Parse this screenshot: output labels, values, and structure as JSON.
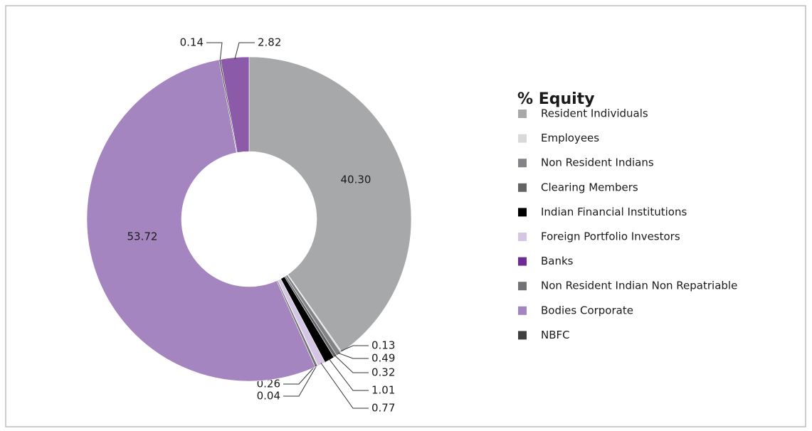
{
  "chart_data": {
    "type": "donut",
    "legend_title": "% Equity",
    "categories": [
      "Resident Individuals",
      "Employees",
      "Non Resident Indians",
      "Clearing Members",
      "Indian Financial Institutions",
      "Foreign Portfolio Investors",
      "Banks",
      "Non Resident Indian Non  Repatriable",
      "Bodies Corporate",
      "NBFC",
      null
    ],
    "values": [
      40.3,
      0.13,
      0.49,
      0.32,
      1.01,
      0.77,
      0.04,
      0.26,
      53.72,
      0.14,
      2.82
    ],
    "value_labels": [
      "40.30",
      "0.13",
      "0.49",
      "0.32",
      "1.01",
      "0.77",
      "0.04",
      "0.26",
      "53.72",
      "0.14",
      "2.82"
    ],
    "colors": [
      "#a7a8aa",
      "#d9d9db",
      "#838487",
      "#636466",
      "#000000",
      "#d6c6e6",
      "#6c2c92",
      "#727376",
      "#a585bf",
      "#3f3f41",
      "#8b5aa8"
    ],
    "legend": "right"
  }
}
